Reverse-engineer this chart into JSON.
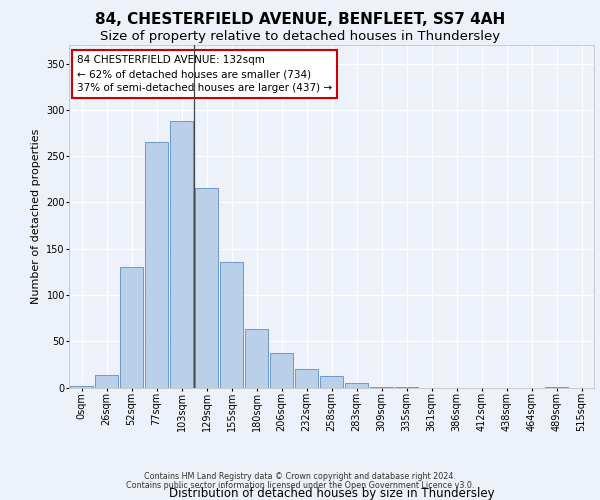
{
  "title1": "84, CHESTERFIELD AVENUE, BENFLEET, SS7 4AH",
  "title2": "Size of property relative to detached houses in Thundersley",
  "xlabel": "Distribution of detached houses by size in Thundersley",
  "ylabel": "Number of detached properties",
  "categories": [
    "0sqm",
    "26sqm",
    "52sqm",
    "77sqm",
    "103sqm",
    "129sqm",
    "155sqm",
    "180sqm",
    "206sqm",
    "232sqm",
    "258sqm",
    "283sqm",
    "309sqm",
    "335sqm",
    "361sqm",
    "386sqm",
    "412sqm",
    "438sqm",
    "464sqm",
    "489sqm",
    "515sqm"
  ],
  "values": [
    2,
    13,
    130,
    265,
    288,
    215,
    136,
    63,
    37,
    20,
    12,
    5,
    1,
    1,
    0,
    0,
    0,
    0,
    0,
    1,
    0
  ],
  "bar_color": "#bad0e8",
  "bar_edge_color": "#5b8ec4",
  "vline_x": 4.5,
  "annotation_text": "84 CHESTERFIELD AVENUE: 132sqm\n← 62% of detached houses are smaller (734)\n37% of semi-detached houses are larger (437) →",
  "annotation_box_color": "#ffffff",
  "annotation_box_edge": "#cc0000",
  "ylim": [
    0,
    370
  ],
  "yticks": [
    0,
    50,
    100,
    150,
    200,
    250,
    300,
    350
  ],
  "bg_color": "#edf1f9",
  "footnote1": "Contains HM Land Registry data © Crown copyright and database right 2024.",
  "footnote2": "Contains public sector information licensed under the Open Government Licence v3.0.",
  "title1_fontsize": 11,
  "title2_fontsize": 9.5,
  "xlabel_fontsize": 8.5,
  "ylabel_fontsize": 8,
  "tick_fontsize": 7,
  "annotation_fontsize": 7.5,
  "footnote_fontsize": 5.8
}
